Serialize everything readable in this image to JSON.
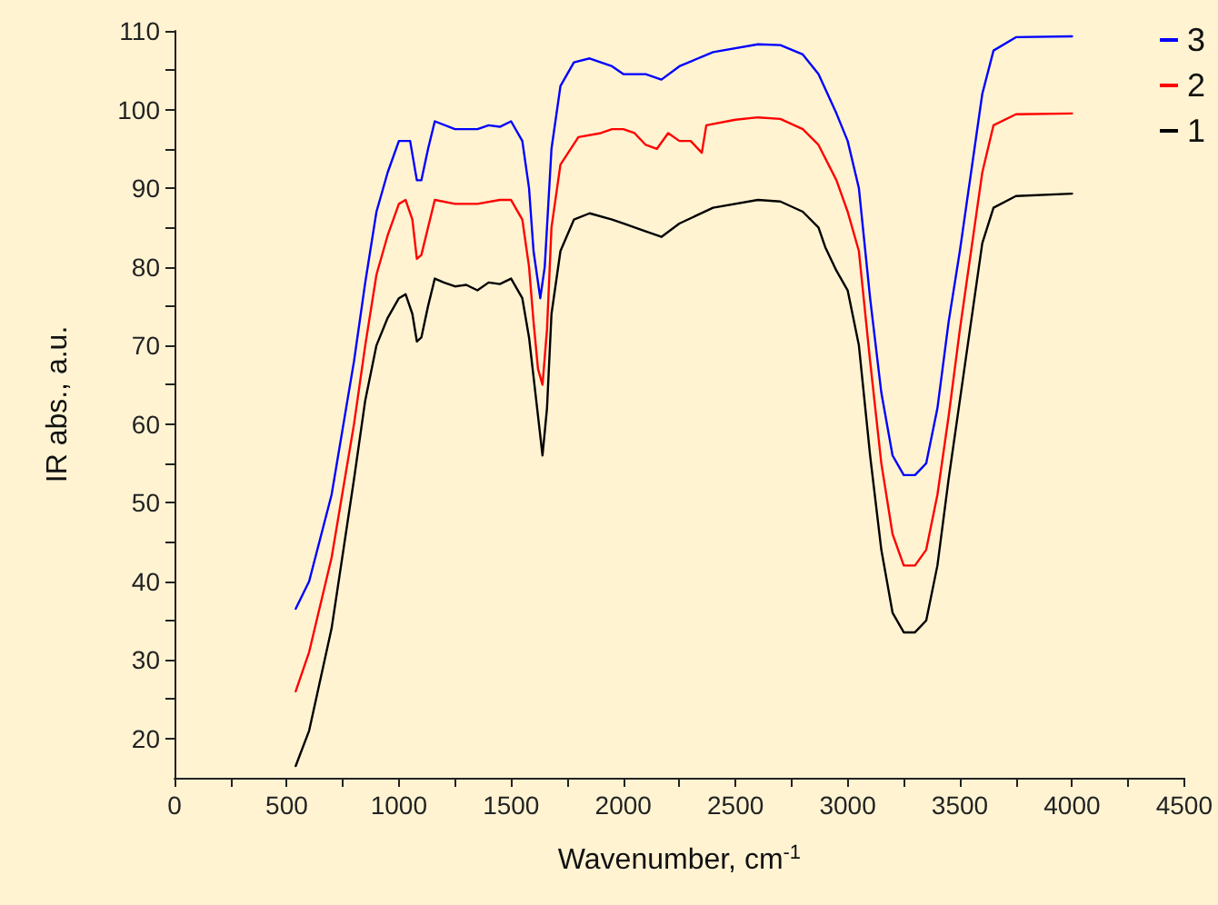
{
  "chart_data": {
    "type": "line",
    "xlabel": "Wavenumber, cm$^{-1}$",
    "ylabel": "IR abs., a.u.",
    "xlim": [
      0,
      4500
    ],
    "ylim": [
      15,
      110
    ],
    "xticks": [
      0,
      {
        "value": 250,
        "label": null
      },
      500,
      {
        "value": 750,
        "label": null
      },
      1000,
      {
        "value": 1250,
        "label": null
      },
      1500,
      {
        "value": 1750,
        "label": null
      },
      2000,
      {
        "value": 2250,
        "label": null
      },
      2500,
      {
        "value": 2750,
        "label": null
      },
      3000,
      {
        "value": 3250,
        "label": null
      },
      3500,
      {
        "value": 3750,
        "label": null
      },
      4000,
      {
        "value": 4250,
        "label": null
      },
      4500
    ],
    "yticks": [
      20,
      {
        "value": 25,
        "label": null
      },
      30,
      {
        "value": 35,
        "label": null
      },
      40,
      {
        "value": 45,
        "label": null
      },
      50,
      {
        "value": 55,
        "label": null
      },
      60,
      {
        "value": 65,
        "label": null
      },
      70,
      {
        "value": 75,
        "label": null
      },
      80,
      {
        "value": 85,
        "label": null
      },
      90,
      {
        "value": 95,
        "label": null
      },
      100,
      {
        "value": 105,
        "label": null
      },
      110
    ],
    "grid": false,
    "legend": "top right",
    "marker": "none",
    "line_style": "solid",
    "series": [
      {
        "name": "3",
        "color": "#0000ff",
        "x": [
          540,
          600,
          700,
          800,
          850,
          900,
          950,
          1000,
          1050,
          1080,
          1100,
          1130,
          1160,
          1250,
          1350,
          1400,
          1450,
          1500,
          1550,
          1580,
          1600,
          1630,
          1650,
          1680,
          1720,
          1780,
          1850,
          1950,
          2000,
          2100,
          2170,
          2250,
          2400,
          2600,
          2700,
          2800,
          2870,
          2950,
          3000,
          3050,
          3100,
          3150,
          3200,
          3250,
          3300,
          3350,
          3400,
          3450,
          3500,
          3550,
          3600,
          3650,
          3750,
          4000
        ],
        "values": [
          36.5,
          40,
          51,
          68,
          78,
          87,
          92,
          96,
          96,
          91,
          91,
          95,
          98.5,
          97.5,
          97.5,
          98,
          97.8,
          98.5,
          96,
          90,
          82,
          76,
          80,
          95,
          103,
          106,
          106.5,
          105.5,
          104.5,
          104.5,
          103.8,
          105.5,
          107.3,
          108.3,
          108.2,
          107,
          104.5,
          99.5,
          96,
          90,
          76,
          64,
          56,
          53.5,
          53.5,
          55,
          62,
          73,
          82,
          92,
          102,
          107.5,
          109.2,
          109.3
        ]
      },
      {
        "name": "2",
        "color": "#ff0000",
        "x": [
          540,
          600,
          700,
          800,
          850,
          900,
          950,
          1000,
          1030,
          1060,
          1080,
          1100,
          1130,
          1160,
          1250,
          1350,
          1450,
          1500,
          1550,
          1580,
          1600,
          1620,
          1640,
          1660,
          1680,
          1720,
          1800,
          1900,
          1950,
          2000,
          2050,
          2100,
          2150,
          2200,
          2250,
          2300,
          2350,
          2370,
          2500,
          2600,
          2700,
          2800,
          2870,
          2950,
          3000,
          3050,
          3100,
          3150,
          3200,
          3250,
          3300,
          3350,
          3400,
          3450,
          3500,
          3550,
          3600,
          3650,
          3750,
          4000
        ],
        "values": [
          26,
          31,
          43,
          60,
          70,
          79,
          84,
          88,
          88.5,
          86,
          81,
          81.5,
          85,
          88.5,
          88,
          88,
          88.5,
          88.5,
          86,
          80,
          73,
          67,
          65,
          72,
          85,
          93,
          96.5,
          97,
          97.5,
          97.5,
          97,
          95.5,
          95,
          97,
          96,
          96,
          94.5,
          98,
          98.7,
          99,
          98.8,
          97.5,
          95.5,
          91,
          87,
          82,
          68,
          55,
          46,
          42,
          42,
          44,
          51,
          61,
          72,
          82,
          92,
          98,
          99.4,
          99.5
        ]
      },
      {
        "name": "1",
        "color": "#000000",
        "x": [
          540,
          600,
          700,
          800,
          850,
          900,
          950,
          1000,
          1030,
          1060,
          1080,
          1100,
          1130,
          1160,
          1200,
          1250,
          1300,
          1350,
          1400,
          1450,
          1500,
          1550,
          1580,
          1600,
          1620,
          1640,
          1660,
          1680,
          1720,
          1780,
          1850,
          1950,
          2000,
          2100,
          2170,
          2250,
          2400,
          2600,
          2700,
          2800,
          2870,
          2900,
          2950,
          3000,
          3050,
          3100,
          3150,
          3200,
          3250,
          3300,
          3350,
          3400,
          3450,
          3500,
          3550,
          3600,
          3650,
          3750,
          4000
        ],
        "values": [
          16.5,
          21,
          34,
          53,
          63,
          70,
          73.5,
          76,
          76.5,
          74,
          70.5,
          71,
          75,
          78.5,
          78,
          77.5,
          77.7,
          77,
          78,
          77.8,
          78.5,
          76,
          71,
          66,
          61,
          56,
          62,
          74,
          82,
          86,
          86.8,
          86,
          85.5,
          84.5,
          83.8,
          85.5,
          87.5,
          88.5,
          88.3,
          87,
          85,
          82.5,
          79.5,
          77,
          70,
          56,
          44,
          36,
          33.5,
          33.5,
          35,
          42,
          53,
          63,
          73,
          83,
          87.5,
          89,
          89.3
        ]
      }
    ]
  }
}
